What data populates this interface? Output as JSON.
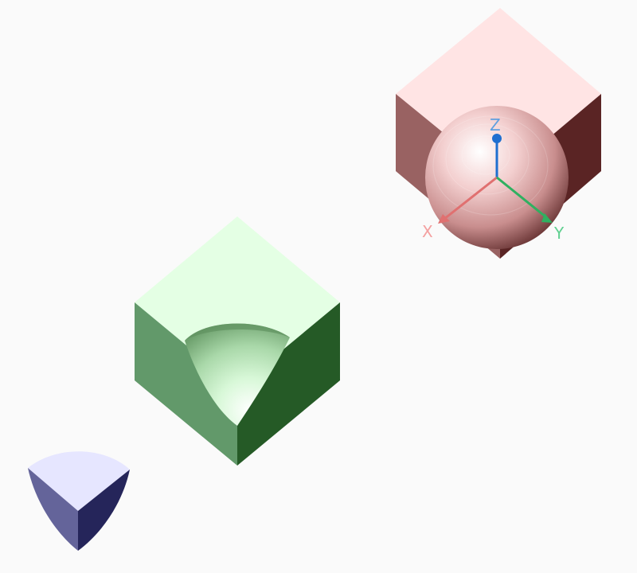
{
  "scene": {
    "background": "#fafafa",
    "objects": [
      {
        "name": "union-cube-sphere",
        "colors": {
          "top": "#ffe4e4",
          "left": "#996262",
          "right": "#5a2424",
          "sphere_light": "#ffffff",
          "sphere_mid": "#e8b4b4",
          "sphere_dark": "#5e2a2a"
        }
      },
      {
        "name": "cube-with-spherical-cut",
        "colors": {
          "top": "#e4ffe4",
          "left": "#62996a",
          "right": "#255a26",
          "cavity_light": "#ffffff",
          "cavity_mid": "#c6f0c6",
          "cavity_dark": "#7fb07f"
        }
      },
      {
        "name": "sphere-cube-intersection",
        "colors": {
          "top": "#e6e6ff",
          "left": "#64649a",
          "right": "#25255a"
        }
      }
    ],
    "axis_gizmo": {
      "x_label": "X",
      "y_label": "Y",
      "z_label": "Z",
      "x_color": "#e07070",
      "y_color": "#2fb060",
      "z_color": "#1f6fd0",
      "x_label_color": "#f4a0a0",
      "y_label_color": "#60d090",
      "z_label_color": "#5f9fe0"
    }
  }
}
